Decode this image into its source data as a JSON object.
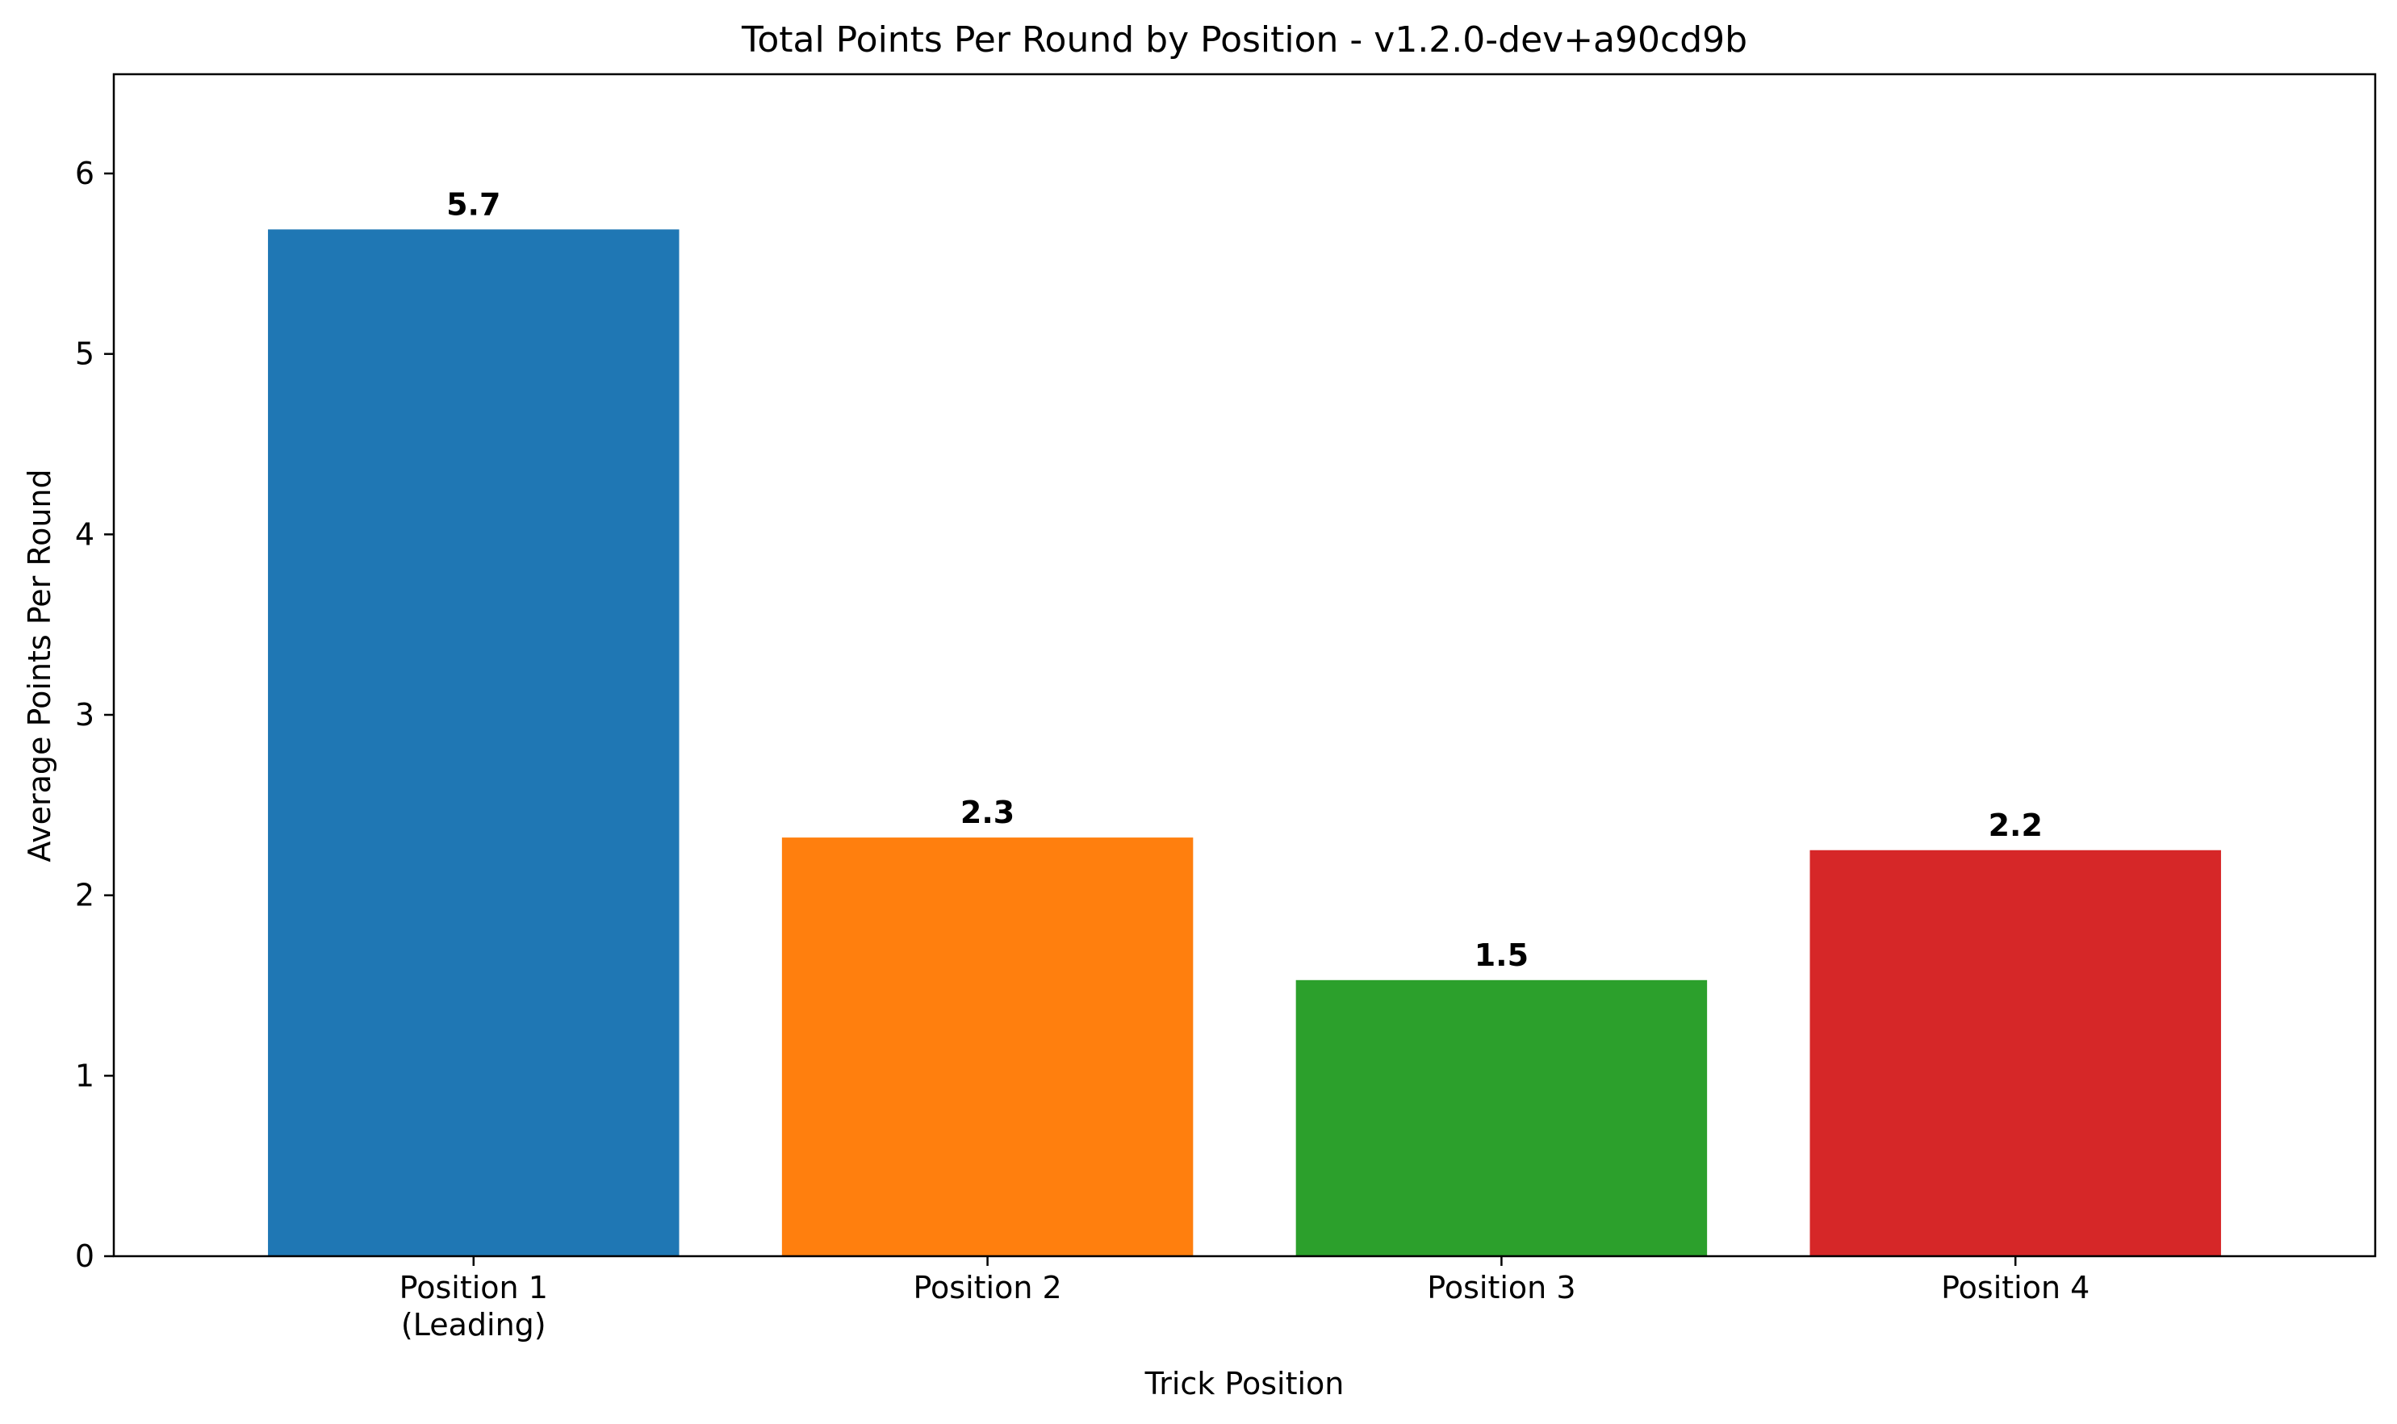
{
  "chart_data": {
    "type": "bar",
    "title": "Total Points Per Round by Position - v1.2.0-dev+a90cd9b",
    "xlabel": "Trick Position",
    "ylabel": "Average Points Per Round",
    "categories": [
      [
        "Position 1",
        "(Leading)"
      ],
      [
        "Position 2"
      ],
      [
        "Position 3"
      ],
      [
        "Position 4"
      ]
    ],
    "values": [
      5.69,
      2.32,
      1.53,
      2.25
    ],
    "value_labels": [
      "5.7",
      "2.3",
      "1.5",
      "2.2"
    ],
    "colors": [
      "#1f77b4",
      "#ff7f0e",
      "#2ca02c",
      "#d62728"
    ],
    "ylim": [
      0,
      6.55
    ],
    "yticks": [
      0,
      1,
      2,
      3,
      4,
      5,
      6
    ],
    "grid": false,
    "legend": "none"
  }
}
